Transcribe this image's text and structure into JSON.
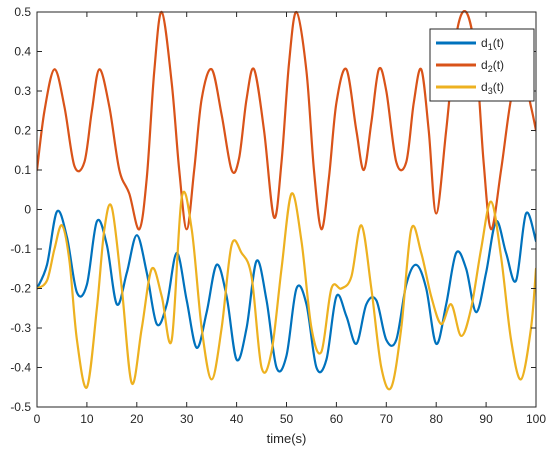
{
  "chart_data": {
    "type": "line",
    "title": "",
    "xlabel": "time(s)",
    "ylabel": "",
    "xlim": [
      0,
      100
    ],
    "ylim": [
      -0.5,
      0.5
    ],
    "x_ticks": [
      0,
      10,
      20,
      30,
      40,
      50,
      60,
      70,
      80,
      90,
      100
    ],
    "y_ticks": [
      -0.5,
      -0.4,
      -0.3,
      -0.2,
      -0.1,
      0,
      0.1,
      0.2,
      0.3,
      0.4,
      0.5
    ],
    "grid": false,
    "legend_position": "top-right",
    "series": [
      {
        "name": "d",
        "subscript": "1",
        "suffix": "(t)",
        "color": "#0072BD",
        "x": [
          0,
          2,
          4,
          6,
          8,
          10,
          12,
          14,
          16,
          18,
          20,
          22,
          24,
          26,
          28,
          30,
          32,
          34,
          36,
          38,
          40,
          42,
          44,
          46,
          48,
          50,
          52,
          54,
          56,
          58,
          60,
          62,
          64,
          66,
          68,
          70,
          72,
          74,
          76,
          78,
          80,
          82,
          84,
          86,
          88,
          90,
          92,
          94,
          96,
          98,
          100
        ],
        "y": [
          -0.2,
          -0.14,
          -0.005,
          -0.07,
          -0.21,
          -0.19,
          -0.03,
          -0.09,
          -0.24,
          -0.16,
          -0.065,
          -0.16,
          -0.29,
          -0.24,
          -0.11,
          -0.23,
          -0.35,
          -0.26,
          -0.14,
          -0.22,
          -0.38,
          -0.3,
          -0.13,
          -0.23,
          -0.4,
          -0.37,
          -0.2,
          -0.24,
          -0.4,
          -0.38,
          -0.22,
          -0.27,
          -0.34,
          -0.24,
          -0.23,
          -0.33,
          -0.33,
          -0.19,
          -0.14,
          -0.2,
          -0.34,
          -0.24,
          -0.11,
          -0.15,
          -0.26,
          -0.16,
          -0.03,
          -0.11,
          -0.18,
          -0.01,
          -0.08
        ]
      },
      {
        "name": "d",
        "subscript": "2",
        "suffix": "(t)",
        "color": "#D95319",
        "x": [
          0,
          1.5,
          3.5,
          5.5,
          7.5,
          9.5,
          11,
          12.5,
          14.5,
          16.5,
          18.5,
          20.5,
          22,
          23.5,
          25,
          27,
          28.5,
          30,
          31.5,
          33,
          35,
          37,
          39,
          40.5,
          42,
          43.5,
          45.5,
          47.5,
          49,
          50.5,
          52,
          54,
          55.5,
          57,
          58.5,
          60,
          62,
          64,
          65.5,
          67,
          68.5,
          70,
          72,
          74,
          75.5,
          77,
          78.5,
          80,
          82,
          84,
          86,
          88,
          89.5,
          91,
          93,
          95,
          97,
          99,
          100
        ],
        "y": [
          0.1,
          0.25,
          0.355,
          0.26,
          0.11,
          0.12,
          0.25,
          0.355,
          0.26,
          0.1,
          0.04,
          -0.05,
          0.08,
          0.35,
          0.5,
          0.32,
          0.1,
          -0.05,
          0.1,
          0.28,
          0.355,
          0.24,
          0.1,
          0.13,
          0.28,
          0.355,
          0.2,
          -0.02,
          0.12,
          0.37,
          0.5,
          0.35,
          0.1,
          -0.05,
          0.08,
          0.27,
          0.355,
          0.2,
          0.1,
          0.22,
          0.355,
          0.3,
          0.12,
          0.12,
          0.27,
          0.355,
          0.2,
          -0.01,
          0.2,
          0.44,
          0.5,
          0.38,
          0.12,
          -0.05,
          0.1,
          0.28,
          0.36,
          0.26,
          0.2
        ]
      },
      {
        "name": "d",
        "subscript": "3",
        "suffix": "(t)",
        "color": "#EDB120",
        "x": [
          0,
          2,
          3.5,
          5,
          6.5,
          8,
          10,
          12,
          13.5,
          15,
          17,
          19,
          21,
          23,
          25,
          27,
          29,
          31,
          33,
          35,
          37,
          39,
          41,
          43,
          45,
          47,
          49,
          51,
          53,
          55,
          57,
          59,
          61,
          63,
          65,
          67,
          69,
          71,
          73,
          75,
          77,
          79,
          81,
          83,
          85,
          87,
          89,
          91,
          93,
          95,
          97,
          99,
          100
        ],
        "y": [
          -0.2,
          -0.18,
          -0.1,
          -0.04,
          -0.13,
          -0.33,
          -0.45,
          -0.25,
          -0.05,
          0.005,
          -0.2,
          -0.44,
          -0.3,
          -0.15,
          -0.22,
          -0.33,
          0.03,
          -0.05,
          -0.3,
          -0.43,
          -0.3,
          -0.09,
          -0.11,
          -0.17,
          -0.4,
          -0.36,
          -0.15,
          0.04,
          -0.08,
          -0.3,
          -0.36,
          -0.2,
          -0.2,
          -0.17,
          -0.04,
          -0.2,
          -0.4,
          -0.45,
          -0.3,
          -0.05,
          -0.11,
          -0.22,
          -0.29,
          -0.24,
          -0.32,
          -0.25,
          -0.1,
          0.02,
          -0.12,
          -0.33,
          -0.43,
          -0.3,
          -0.15
        ]
      }
    ]
  }
}
